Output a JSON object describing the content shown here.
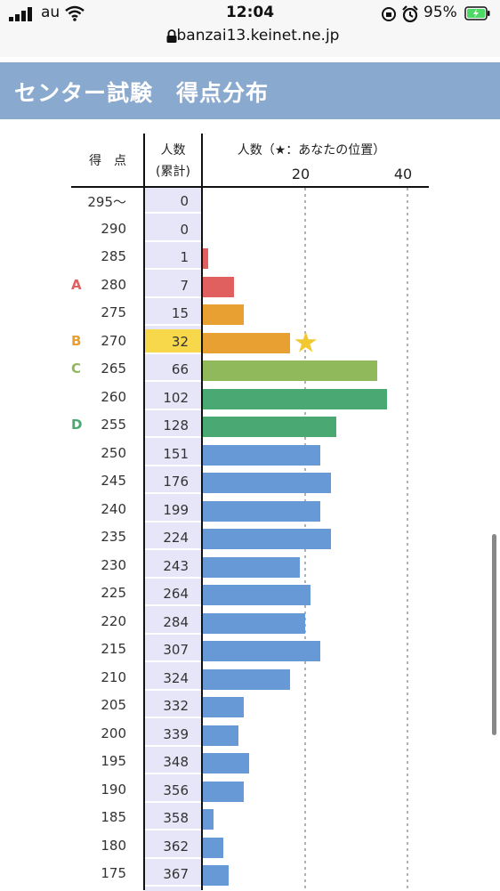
{
  "status_bar": {
    "carrier": "au",
    "time": "12:04",
    "battery": "95%",
    "url": "banzai13.keinet.ne.jp"
  },
  "page": {
    "title": "センター試験　得点分布"
  },
  "table": {
    "score_header": "得　点",
    "cum_header_line1": "人数",
    "cum_header_line2": "(累計)",
    "chart_header": "人数（★：あなたの位置）",
    "axis_ticks": [
      20,
      40
    ],
    "star_score": 270
  },
  "chart_data": {
    "type": "bar",
    "ylabel": "人数（★：あなたの位置）",
    "xlim": [
      0,
      40
    ],
    "rows": [
      {
        "score": "295〜",
        "cum": 0,
        "count": 0,
        "grade": "",
        "color": "#e06060"
      },
      {
        "score": "290",
        "cum": 0,
        "count": 0,
        "grade": "",
        "color": "#e06060"
      },
      {
        "score": "285",
        "cum": 1,
        "count": 1,
        "grade": "",
        "color": "#e06060"
      },
      {
        "score": "280",
        "cum": 7,
        "count": 6,
        "grade": "A",
        "color": "#e06060"
      },
      {
        "score": "275",
        "cum": 15,
        "count": 8,
        "grade": "",
        "color": "#e8a032"
      },
      {
        "score": "270",
        "cum": 32,
        "count": 17,
        "grade": "B",
        "color": "#e8a032"
      },
      {
        "score": "265",
        "cum": 66,
        "count": 34,
        "grade": "C",
        "color": "#8fb95a"
      },
      {
        "score": "260",
        "cum": 102,
        "count": 36,
        "grade": "",
        "color": "#4aa872"
      },
      {
        "score": "255",
        "cum": 128,
        "count": 26,
        "grade": "D",
        "color": "#4aa872"
      },
      {
        "score": "250",
        "cum": 151,
        "count": 23,
        "grade": "",
        "color": "#6699d6"
      },
      {
        "score": "245",
        "cum": 176,
        "count": 25,
        "grade": "",
        "color": "#6699d6"
      },
      {
        "score": "240",
        "cum": 199,
        "count": 23,
        "grade": "",
        "color": "#6699d6"
      },
      {
        "score": "235",
        "cum": 224,
        "count": 25,
        "grade": "",
        "color": "#6699d6"
      },
      {
        "score": "230",
        "cum": 243,
        "count": 19,
        "grade": "",
        "color": "#6699d6"
      },
      {
        "score": "225",
        "cum": 264,
        "count": 21,
        "grade": "",
        "color": "#6699d6"
      },
      {
        "score": "220",
        "cum": 284,
        "count": 20,
        "grade": "",
        "color": "#6699d6"
      },
      {
        "score": "215",
        "cum": 307,
        "count": 23,
        "grade": "",
        "color": "#6699d6"
      },
      {
        "score": "210",
        "cum": 324,
        "count": 17,
        "grade": "",
        "color": "#6699d6"
      },
      {
        "score": "205",
        "cum": 332,
        "count": 8,
        "grade": "",
        "color": "#6699d6"
      },
      {
        "score": "200",
        "cum": 339,
        "count": 7,
        "grade": "",
        "color": "#6699d6"
      },
      {
        "score": "195",
        "cum": 348,
        "count": 9,
        "grade": "",
        "color": "#6699d6"
      },
      {
        "score": "190",
        "cum": 356,
        "count": 8,
        "grade": "",
        "color": "#6699d6"
      },
      {
        "score": "185",
        "cum": 358,
        "count": 2,
        "grade": "",
        "color": "#6699d6"
      },
      {
        "score": "180",
        "cum": 362,
        "count": 4,
        "grade": "",
        "color": "#6699d6"
      },
      {
        "score": "175",
        "cum": 367,
        "count": 5,
        "grade": "",
        "color": "#6699d6"
      }
    ]
  },
  "colors": {
    "header_bg": "#8aa9ce",
    "cum_col_bg": "#e6e6f8",
    "highlight": "#f7d84a",
    "star": "#f2c830",
    "grade_A": "#e06060",
    "grade_B": "#e8a032",
    "grade_C": "#8fb95a",
    "grade_D": "#4aa872"
  }
}
